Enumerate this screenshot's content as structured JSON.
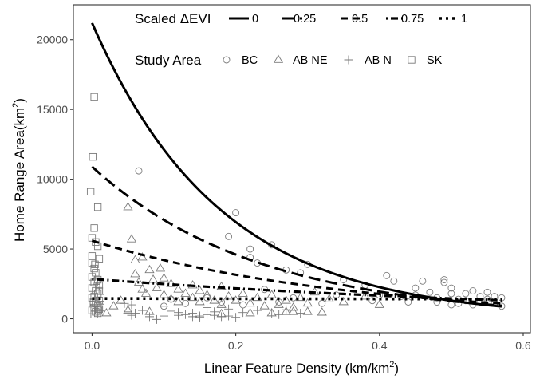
{
  "chart_data": {
    "type": "scatter",
    "xlabel": "Linear Feature Density (km/km",
    "xlabel_sup": "2",
    "xlabel_end": ")",
    "ylabel": "Home Range Area(km",
    "ylabel_sup": "2",
    "ylabel_end": ")",
    "xlim": [
      -0.026,
      0.61
    ],
    "ylim": [
      -1000,
      22500
    ],
    "x_ticks": [
      0.0,
      0.2,
      0.4,
      0.6
    ],
    "x_tick_labels": [
      "0.0",
      "0.2",
      "0.4",
      "0.6"
    ],
    "y_ticks": [
      0,
      5000,
      10000,
      15000,
      20000
    ],
    "y_tick_labels": [
      "0",
      "5000",
      "10000",
      "15000",
      "20000"
    ],
    "grid": false,
    "legend": {
      "placement": "top",
      "line_title": "Scaled ΔEVI",
      "line_entries": [
        "0",
        "0.25",
        "0.5",
        "0.75",
        "1"
      ],
      "point_title": "Study Area",
      "point_entries": [
        "BC",
        "AB NE",
        "AB N",
        "SK"
      ]
    },
    "lines": [
      {
        "name": "0",
        "dash": "solid",
        "intercept": 21200,
        "rate": 5.59,
        "x_range": [
          0.0,
          0.57
        ]
      },
      {
        "name": "0.25",
        "dash": "longdash",
        "intercept": 10900,
        "rate": 4.31,
        "x_range": [
          0.0,
          0.57
        ]
      },
      {
        "name": "0.5",
        "dash": "dashed",
        "intercept": 5600,
        "rate": 2.87,
        "x_range": [
          0.0,
          0.57
        ]
      },
      {
        "name": "0.75",
        "dash": "dotdash",
        "intercept": 2850,
        "rate": 1.35,
        "x_range": [
          0.0,
          0.57
        ]
      },
      {
        "name": "1",
        "dash": "dotted",
        "intercept": 1450,
        "rate": 0.05,
        "x_range": [
          0.0,
          0.57
        ]
      }
    ],
    "series": [
      {
        "name": "BC",
        "marker": "circle",
        "points": [
          [
            0.065,
            10600
          ],
          [
            0.2,
            7600
          ],
          [
            0.19,
            5900
          ],
          [
            0.22,
            5000
          ],
          [
            0.22,
            4400
          ],
          [
            0.25,
            5300
          ],
          [
            0.23,
            4000
          ],
          [
            0.27,
            3500
          ],
          [
            0.29,
            3300
          ],
          [
            0.3,
            3900
          ],
          [
            0.35,
            2800
          ],
          [
            0.38,
            2400
          ],
          [
            0.41,
            3100
          ],
          [
            0.42,
            2700
          ],
          [
            0.43,
            1600
          ],
          [
            0.45,
            2200
          ],
          [
            0.46,
            2700
          ],
          [
            0.47,
            1900
          ],
          [
            0.48,
            1500
          ],
          [
            0.49,
            2800
          ],
          [
            0.49,
            2600
          ],
          [
            0.5,
            2200
          ],
          [
            0.5,
            1800
          ],
          [
            0.51,
            1400
          ],
          [
            0.51,
            1100
          ],
          [
            0.52,
            1800
          ],
          [
            0.52,
            1300
          ],
          [
            0.53,
            2000
          ],
          [
            0.53,
            1000
          ],
          [
            0.54,
            1600
          ],
          [
            0.54,
            1200
          ],
          [
            0.55,
            1900
          ],
          [
            0.55,
            1400
          ],
          [
            0.56,
            1600
          ],
          [
            0.56,
            1100
          ],
          [
            0.57,
            1500
          ],
          [
            0.57,
            900
          ],
          [
            0.5,
            1000
          ],
          [
            0.48,
            1200
          ],
          [
            0.45,
            1700
          ],
          [
            0.44,
            1200
          ],
          [
            0.4,
            1700
          ],
          [
            0.39,
            1300
          ],
          [
            0.34,
            1700
          ],
          [
            0.32,
            1100
          ],
          [
            0.28,
            1500
          ],
          [
            0.26,
            1200
          ],
          [
            0.24,
            2100
          ],
          [
            0.21,
            1000
          ],
          [
            0.18,
            1200
          ],
          [
            0.16,
            1500
          ],
          [
            0.13,
            1100
          ],
          [
            0.11,
            1400
          ],
          [
            0.1,
            900
          ]
        ]
      },
      {
        "name": "AB NE",
        "marker": "triangle",
        "points": [
          [
            0.05,
            8000
          ],
          [
            0.055,
            5700
          ],
          [
            0.06,
            4200
          ],
          [
            0.06,
            3200
          ],
          [
            0.065,
            2600
          ],
          [
            0.07,
            4400
          ],
          [
            0.07,
            2100
          ],
          [
            0.075,
            1800
          ],
          [
            0.08,
            3500
          ],
          [
            0.085,
            2800
          ],
          [
            0.09,
            2200
          ],
          [
            0.095,
            3600
          ],
          [
            0.1,
            1700
          ],
          [
            0.1,
            2900
          ],
          [
            0.11,
            2500
          ],
          [
            0.11,
            1400
          ],
          [
            0.12,
            1200
          ],
          [
            0.12,
            2100
          ],
          [
            0.13,
            1800
          ],
          [
            0.14,
            2400
          ],
          [
            0.14,
            1500
          ],
          [
            0.15,
            2000
          ],
          [
            0.15,
            1200
          ],
          [
            0.16,
            1700
          ],
          [
            0.17,
            1300
          ],
          [
            0.18,
            2300
          ],
          [
            0.18,
            1000
          ],
          [
            0.19,
            1600
          ],
          [
            0.2,
            1300
          ],
          [
            0.21,
            1800
          ],
          [
            0.22,
            1100
          ],
          [
            0.23,
            1500
          ],
          [
            0.24,
            900
          ],
          [
            0.25,
            1700
          ],
          [
            0.26,
            1000
          ],
          [
            0.27,
            1300
          ],
          [
            0.28,
            800
          ],
          [
            0.29,
            1500
          ],
          [
            0.3,
            1100
          ],
          [
            0.31,
            1900
          ],
          [
            0.33,
            1400
          ],
          [
            0.35,
            1200
          ],
          [
            0.38,
            1600
          ],
          [
            0.4,
            1000
          ],
          [
            0.02,
            400
          ],
          [
            0.03,
            900
          ],
          [
            0.04,
            1300
          ],
          [
            0.05,
            600
          ],
          [
            0.08,
            500
          ],
          [
            0.25,
            400
          ],
          [
            0.28,
            500
          ],
          [
            0.3,
            500
          ],
          [
            0.32,
            450
          ],
          [
            0.27,
            500
          ],
          [
            0.22,
            400
          ],
          [
            0.18,
            350
          ]
        ]
      },
      {
        "name": "AB N",
        "marker": "plus",
        "points": [
          [
            0.05,
            500
          ],
          [
            0.055,
            250
          ],
          [
            0.06,
            400
          ],
          [
            0.08,
            150
          ],
          [
            0.1,
            200
          ],
          [
            0.12,
            250
          ],
          [
            0.13,
            300
          ],
          [
            0.14,
            150
          ],
          [
            0.15,
            200
          ],
          [
            0.15,
            100
          ],
          [
            0.16,
            300
          ],
          [
            0.17,
            250
          ],
          [
            0.18,
            150
          ],
          [
            0.19,
            200
          ],
          [
            0.2,
            100
          ],
          [
            0.09,
            -50
          ],
          [
            0.07,
            600
          ],
          [
            0.11,
            550
          ],
          [
            0.12,
            450
          ],
          [
            0.14,
            400
          ],
          [
            0.17,
            500
          ],
          [
            0.045,
            1100
          ],
          [
            0.055,
            1000
          ],
          [
            0.1,
            900
          ],
          [
            0.16,
            800
          ],
          [
            0.19,
            700
          ],
          [
            0.21,
            450
          ],
          [
            0.23,
            600
          ],
          [
            0.25,
            350
          ],
          [
            0.27,
            650
          ],
          [
            0.29,
            400
          ],
          [
            0.26,
            300
          ]
        ]
      },
      {
        "name": "SK",
        "marker": "square",
        "points": [
          [
            0.003,
            15900
          ],
          [
            0.001,
            11600
          ],
          [
            -0.002,
            9100
          ],
          [
            0.008,
            8000
          ],
          [
            0.003,
            6500
          ],
          [
            0.0,
            5800
          ],
          [
            0.005,
            5500
          ],
          [
            0.008,
            5200
          ],
          [
            0.0,
            4500
          ],
          [
            0.01,
            4300
          ],
          [
            0.003,
            3600
          ],
          [
            0.005,
            3300
          ],
          [
            0.0,
            3000
          ],
          [
            0.008,
            2800
          ],
          [
            0.003,
            2600
          ],
          [
            0.01,
            2400
          ],
          [
            0.0,
            2200
          ],
          [
            0.005,
            2000
          ],
          [
            0.008,
            1800
          ],
          [
            0.003,
            1600
          ],
          [
            0.0,
            1500
          ],
          [
            0.01,
            1300
          ],
          [
            0.005,
            1100
          ],
          [
            0.008,
            900
          ],
          [
            0.003,
            800
          ],
          [
            0.01,
            700
          ],
          [
            0.0,
            600
          ],
          [
            0.005,
            500
          ],
          [
            0.008,
            400
          ],
          [
            0.003,
            300
          ],
          [
            0.012,
            1500
          ],
          [
            0.01,
            2000
          ],
          [
            0.006,
            2300
          ],
          [
            0.004,
            3900
          ],
          [
            0.012,
            800
          ],
          [
            0.002,
            1200
          ],
          [
            0.009,
            600
          ],
          [
            0.0,
            4000
          ],
          [
            0.006,
            2700
          ]
        ]
      }
    ]
  }
}
